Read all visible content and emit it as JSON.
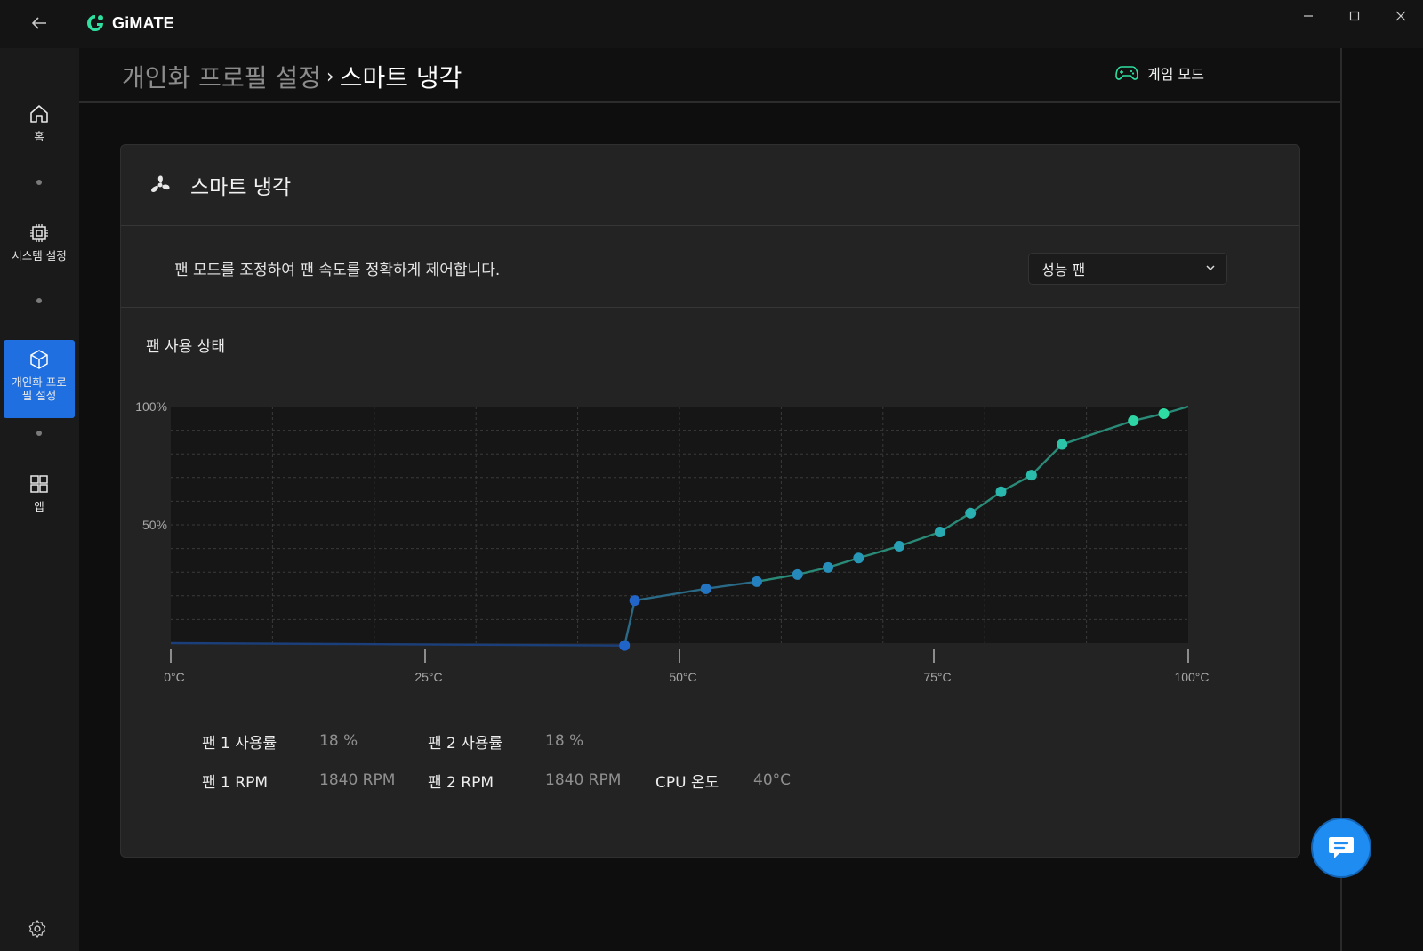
{
  "app": {
    "name": "GiMATE",
    "accent": "#1f6fe0",
    "teal": "#2fe0a0"
  },
  "window": {
    "controls": [
      "minimize-icon",
      "maximize-icon",
      "close-icon"
    ]
  },
  "sidebar": {
    "items": [
      {
        "label": "홈",
        "icon": "home-icon",
        "active": false
      },
      {
        "label": "시스템 설정",
        "icon": "chip-icon",
        "active": false
      },
      {
        "label": "개인화 프로필 설정",
        "icon": "cube-icon",
        "active": true
      },
      {
        "label": "앱",
        "icon": "apps-grid-icon",
        "active": false
      }
    ],
    "footer_icon": "gear-icon"
  },
  "header": {
    "breadcrumb_parent": "개인화 프로필 설정",
    "breadcrumb_sep": "›",
    "breadcrumb_current": "스마트 냉각",
    "game_mode_label": "게임 모드"
  },
  "card": {
    "title": "스마트 냉각",
    "description": "팬 모드를 조정하여 팬 속도를 정확하게 제어합니다.",
    "mode_selected": "성능 팬",
    "status_title": "팬 사용 상태"
  },
  "chart_data": {
    "type": "line",
    "xlabel": "",
    "ylabel": "",
    "xlim": [
      0,
      100
    ],
    "ylim": [
      0,
      100
    ],
    "x_ticks": [
      0,
      25,
      50,
      75,
      100
    ],
    "x_tick_labels": [
      "0°C",
      "25°C",
      "50°C",
      "75°C",
      "100°C"
    ],
    "y_tick_labels": [
      {
        "value": 100,
        "label": "100%"
      },
      {
        "value": 50,
        "label": "50%"
      }
    ],
    "grid": true,
    "series": [
      {
        "points": [
          [
            0,
            0
          ],
          [
            44.6,
            -1
          ],
          [
            45.6,
            18
          ],
          [
            52.6,
            23
          ],
          [
            57.6,
            26
          ],
          [
            61.6,
            29
          ],
          [
            64.6,
            32
          ],
          [
            67.6,
            36
          ],
          [
            71.6,
            41
          ],
          [
            75.6,
            47
          ],
          [
            78.6,
            55
          ],
          [
            81.6,
            64
          ],
          [
            84.6,
            71
          ],
          [
            87.6,
            84
          ],
          [
            94.6,
            94
          ],
          [
            97.6,
            97
          ],
          [
            100,
            100
          ]
        ],
        "markers_from_index": 1,
        "markers_to_index": 15
      }
    ]
  },
  "stats": {
    "fan1_usage_label": "팬 1 사용률",
    "fan1_usage_value": "18 %",
    "fan2_usage_label": "팬 2 사용률",
    "fan2_usage_value": "18 %",
    "fan1_rpm_label": "팬 1 RPM",
    "fan1_rpm_value": "1840 RPM",
    "fan2_rpm_label": "팬 2 RPM",
    "fan2_rpm_value": "1840 RPM",
    "cpu_temp_label": "CPU 온도",
    "cpu_temp_value": "40°C"
  },
  "fab_icon": "chat-icon"
}
